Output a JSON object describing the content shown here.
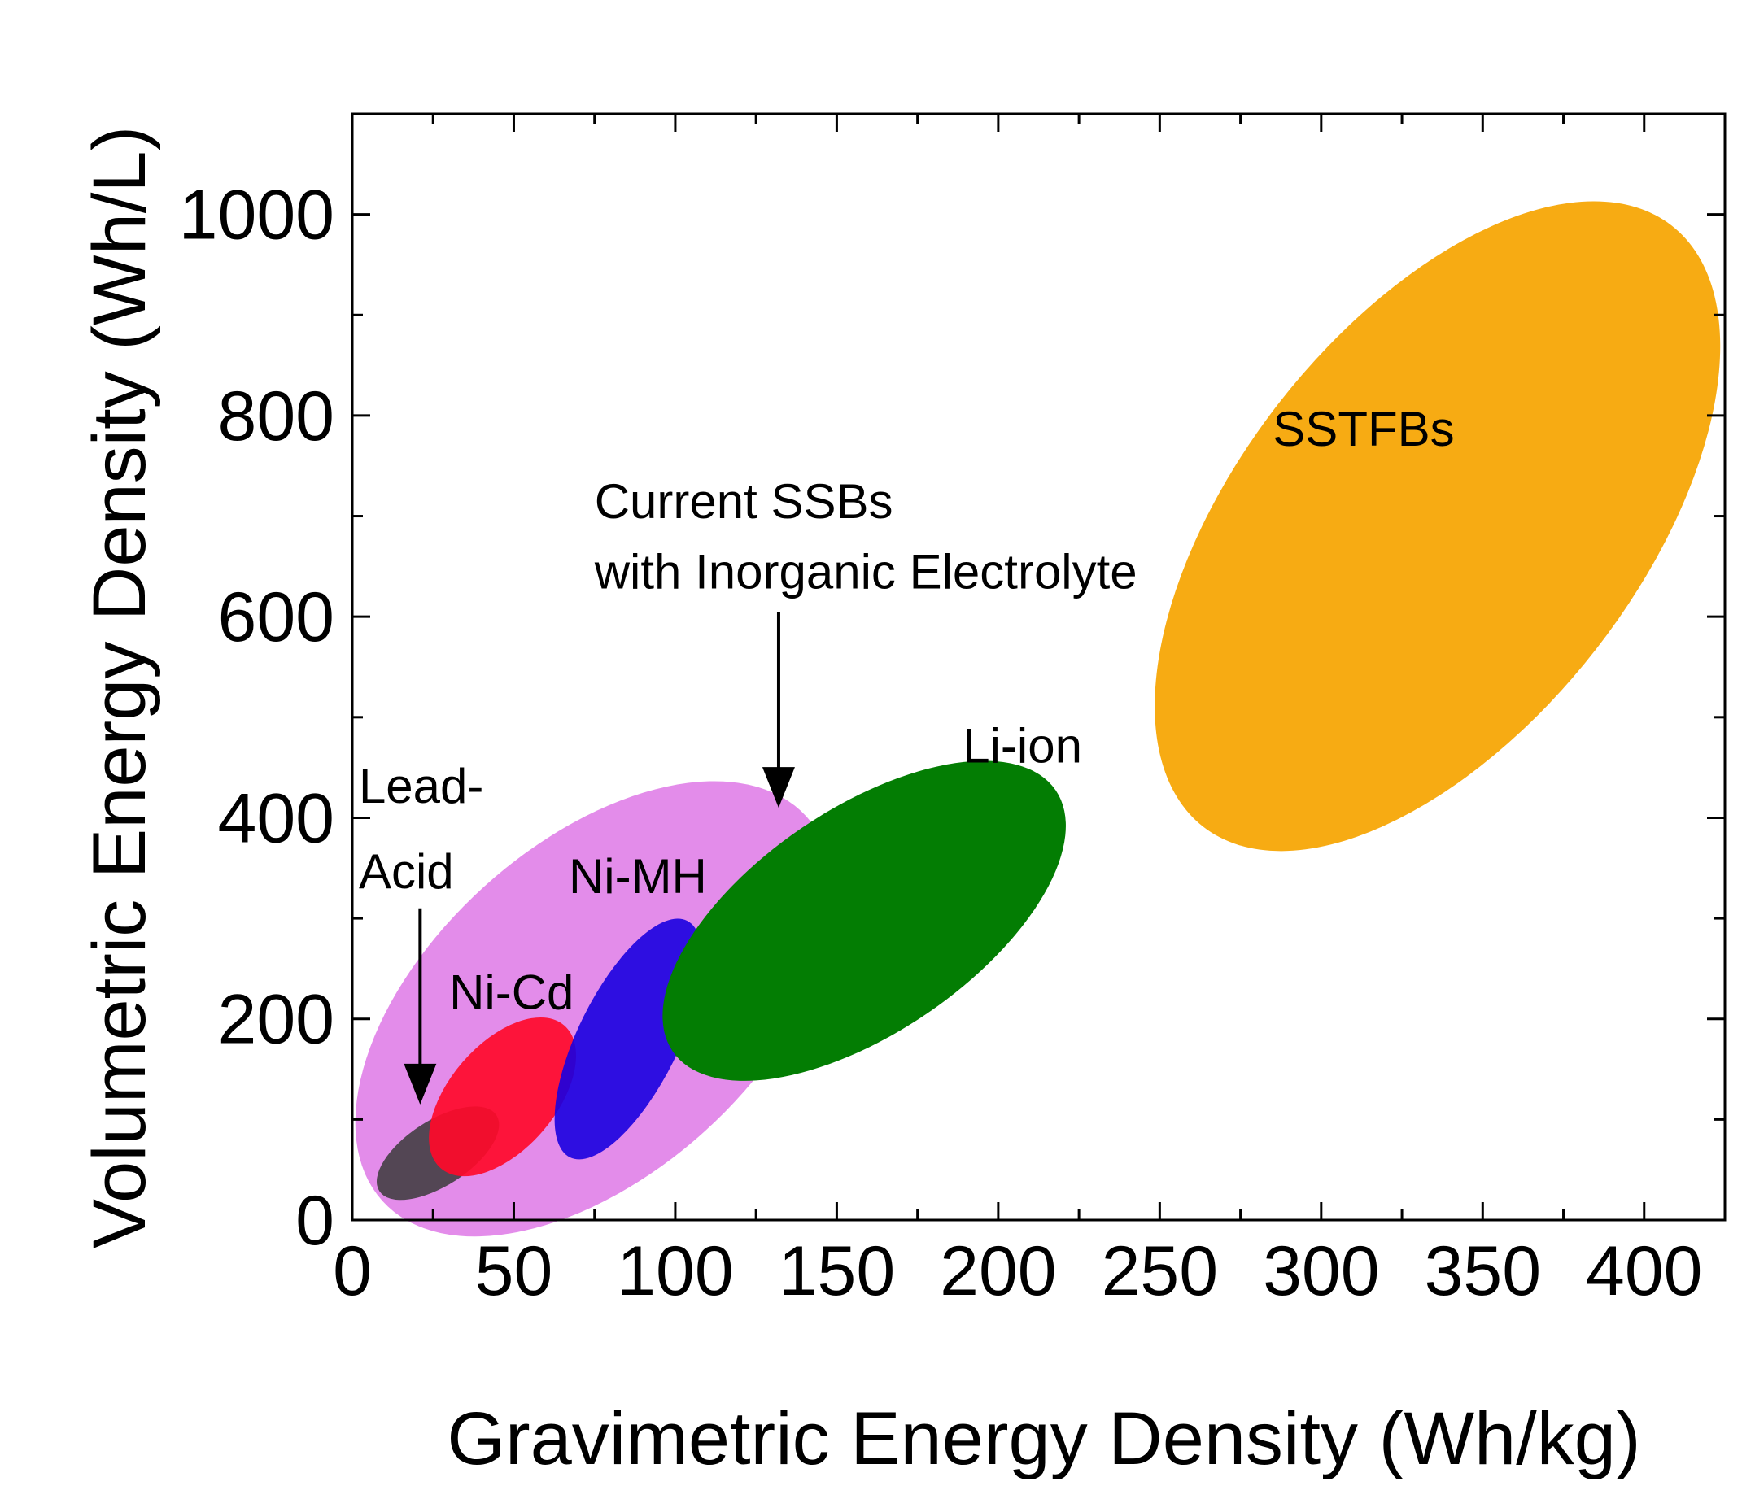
{
  "chart_data": {
    "type": "scatter",
    "subtype": "region-ellipses",
    "xlabel": "Gravimetric Energy Density (Wh/kg)",
    "ylabel": "Volumetric Energy Density (Wh/L)",
    "xlim": [
      0,
      425
    ],
    "ylim": [
      0,
      1100
    ],
    "xticks": [
      0,
      50,
      100,
      150,
      200,
      250,
      300,
      350,
      400
    ],
    "yticks": [
      0,
      200,
      400,
      600,
      800,
      1000
    ],
    "minor_x_step": 25,
    "minor_y_step": 100,
    "regions": [
      {
        "name": "Current SSBs with Inorganic Electrolyte",
        "color": "#e080e8",
        "opacity": 0.9,
        "x_range": [
          8,
          142
        ],
        "y_range": [
          15,
          405
        ]
      },
      {
        "name": "Lead-Acid",
        "color": "#3a3a3a",
        "opacity": 0.85,
        "x_range": [
          8,
          45
        ],
        "y_range": [
          28,
          105
        ]
      },
      {
        "name": "Ni-Cd",
        "color": "#ff0a2a",
        "opacity": 0.92,
        "x_range": [
          27,
          66
        ],
        "y_range": [
          50,
          195
        ]
      },
      {
        "name": "Ni-MH",
        "color": "#1a00e0",
        "opacity": 0.9,
        "x_range": [
          67,
          104
        ],
        "y_range": [
          60,
          300
        ]
      },
      {
        "name": "Li-ion",
        "color": "#037d03",
        "opacity": 1,
        "x_range": [
          98,
          219
        ],
        "y_range": [
          165,
          430
        ]
      },
      {
        "name": "SSTFBs",
        "color": "#f7ab13",
        "opacity": 1,
        "x_range": [
          262,
          410
        ],
        "y_range": [
          385,
          995
        ]
      }
    ],
    "annotations": [
      {
        "text": "SSTFBs",
        "x": 285,
        "y": 770
      },
      {
        "text": "Current SSBs",
        "x": 75,
        "y": 698
      },
      {
        "text": "with Inorganic Electrolyte",
        "x": 75,
        "y": 628
      },
      {
        "text": "Li-ion",
        "x": 189,
        "y": 455
      },
      {
        "text": "Lead-",
        "x": 2,
        "y": 415
      },
      {
        "text": "Acid",
        "x": 2,
        "y": 330
      },
      {
        "text": "Ni-MH",
        "x": 67,
        "y": 325
      },
      {
        "text": "Ni-Cd",
        "x": 30,
        "y": 210
      }
    ],
    "arrows": [
      {
        "label": "Current SSBs with Inorganic Electrolyte",
        "from": [
          132,
          605
        ],
        "to": [
          132,
          410
        ]
      },
      {
        "label": "Lead-Acid",
        "from": [
          21,
          310
        ],
        "to": [
          21,
          115
        ]
      }
    ]
  }
}
